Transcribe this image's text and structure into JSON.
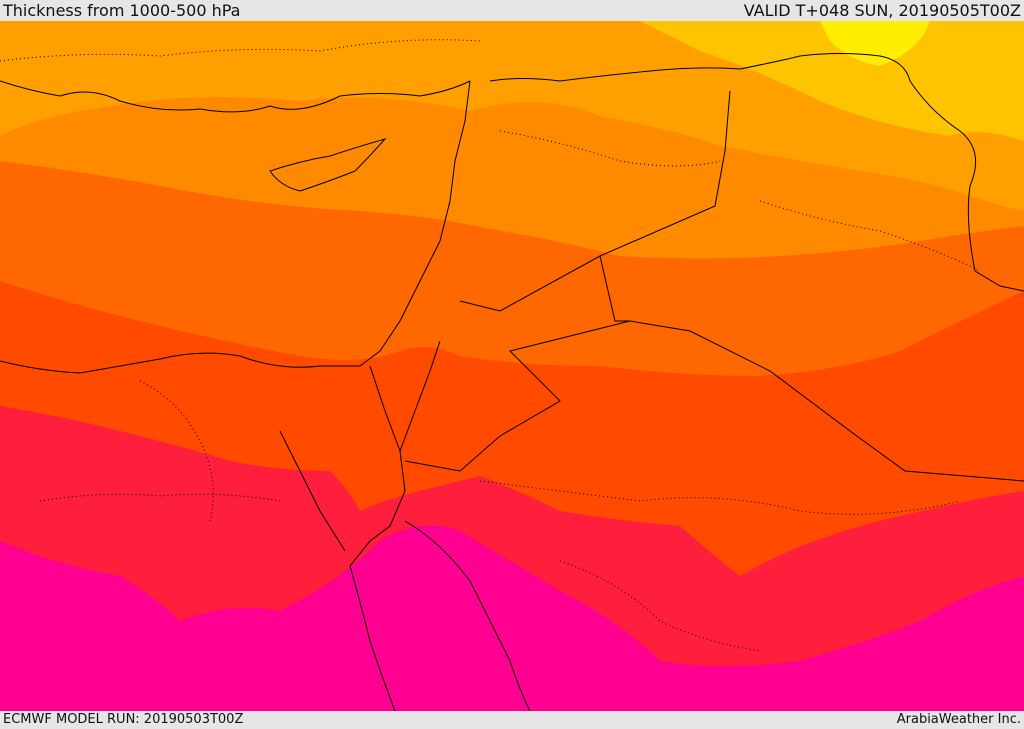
{
  "header": {
    "title": "Thickness from 1000-500 hPa",
    "valid": "VALID T+048 SUN, 20190505T00Z"
  },
  "footer": {
    "model_run": "ECMWF MODEL RUN: 20190503T00Z",
    "credit": "ArabiaWeather Inc."
  },
  "map": {
    "field": "thickness-1000-500",
    "band_colors": [
      "#ffee00",
      "#ffc400",
      "#ffa000",
      "#ff8a00",
      "#ff6800",
      "#ff4a00",
      "#ff1e3c",
      "#ff0a78",
      "#ff0090"
    ],
    "boundary_color": "#000000"
  }
}
